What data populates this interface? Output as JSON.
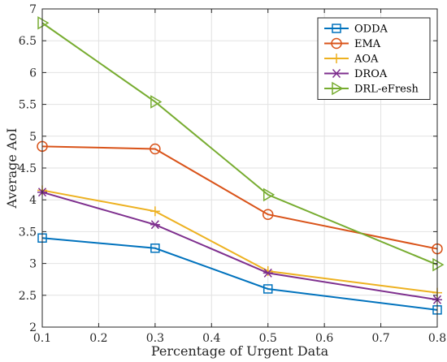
{
  "chart_data": {
    "type": "line",
    "xlabel": "Percentage of Urgent Data",
    "ylabel": "Average AoI",
    "x": [
      0.1,
      0.3,
      0.5,
      0.8
    ],
    "xlim": [
      0.1,
      0.8
    ],
    "ylim": [
      2,
      7
    ],
    "xticks": [
      "0.1",
      "0.2",
      "0.3",
      "0.4",
      "0.5",
      "0.6",
      "0.7",
      "0.8"
    ],
    "yticks": [
      "2",
      "2.5",
      "3",
      "3.5",
      "4",
      "4.5",
      "5",
      "5.5",
      "6",
      "6.5",
      "7"
    ],
    "grid": true,
    "legend_position": "top-right",
    "series": [
      {
        "name": "ODDA",
        "values": [
          3.4,
          3.24,
          2.6,
          2.27
        ],
        "color": "#0072BD",
        "marker": "square"
      },
      {
        "name": "EMA",
        "values": [
          4.84,
          4.8,
          3.77,
          3.23
        ],
        "color": "#D95319",
        "marker": "circle"
      },
      {
        "name": "AOA",
        "values": [
          4.15,
          3.82,
          2.88,
          2.54
        ],
        "color": "#EDB120",
        "marker": "plus"
      },
      {
        "name": "DROA",
        "values": [
          4.12,
          3.61,
          2.85,
          2.43
        ],
        "color": "#7E2F8E",
        "marker": "asterisk"
      },
      {
        "name": "DRL-eFresh",
        "values": [
          6.78,
          5.54,
          4.08,
          2.98
        ],
        "color": "#77AC30",
        "marker": "triangle-right"
      }
    ]
  }
}
